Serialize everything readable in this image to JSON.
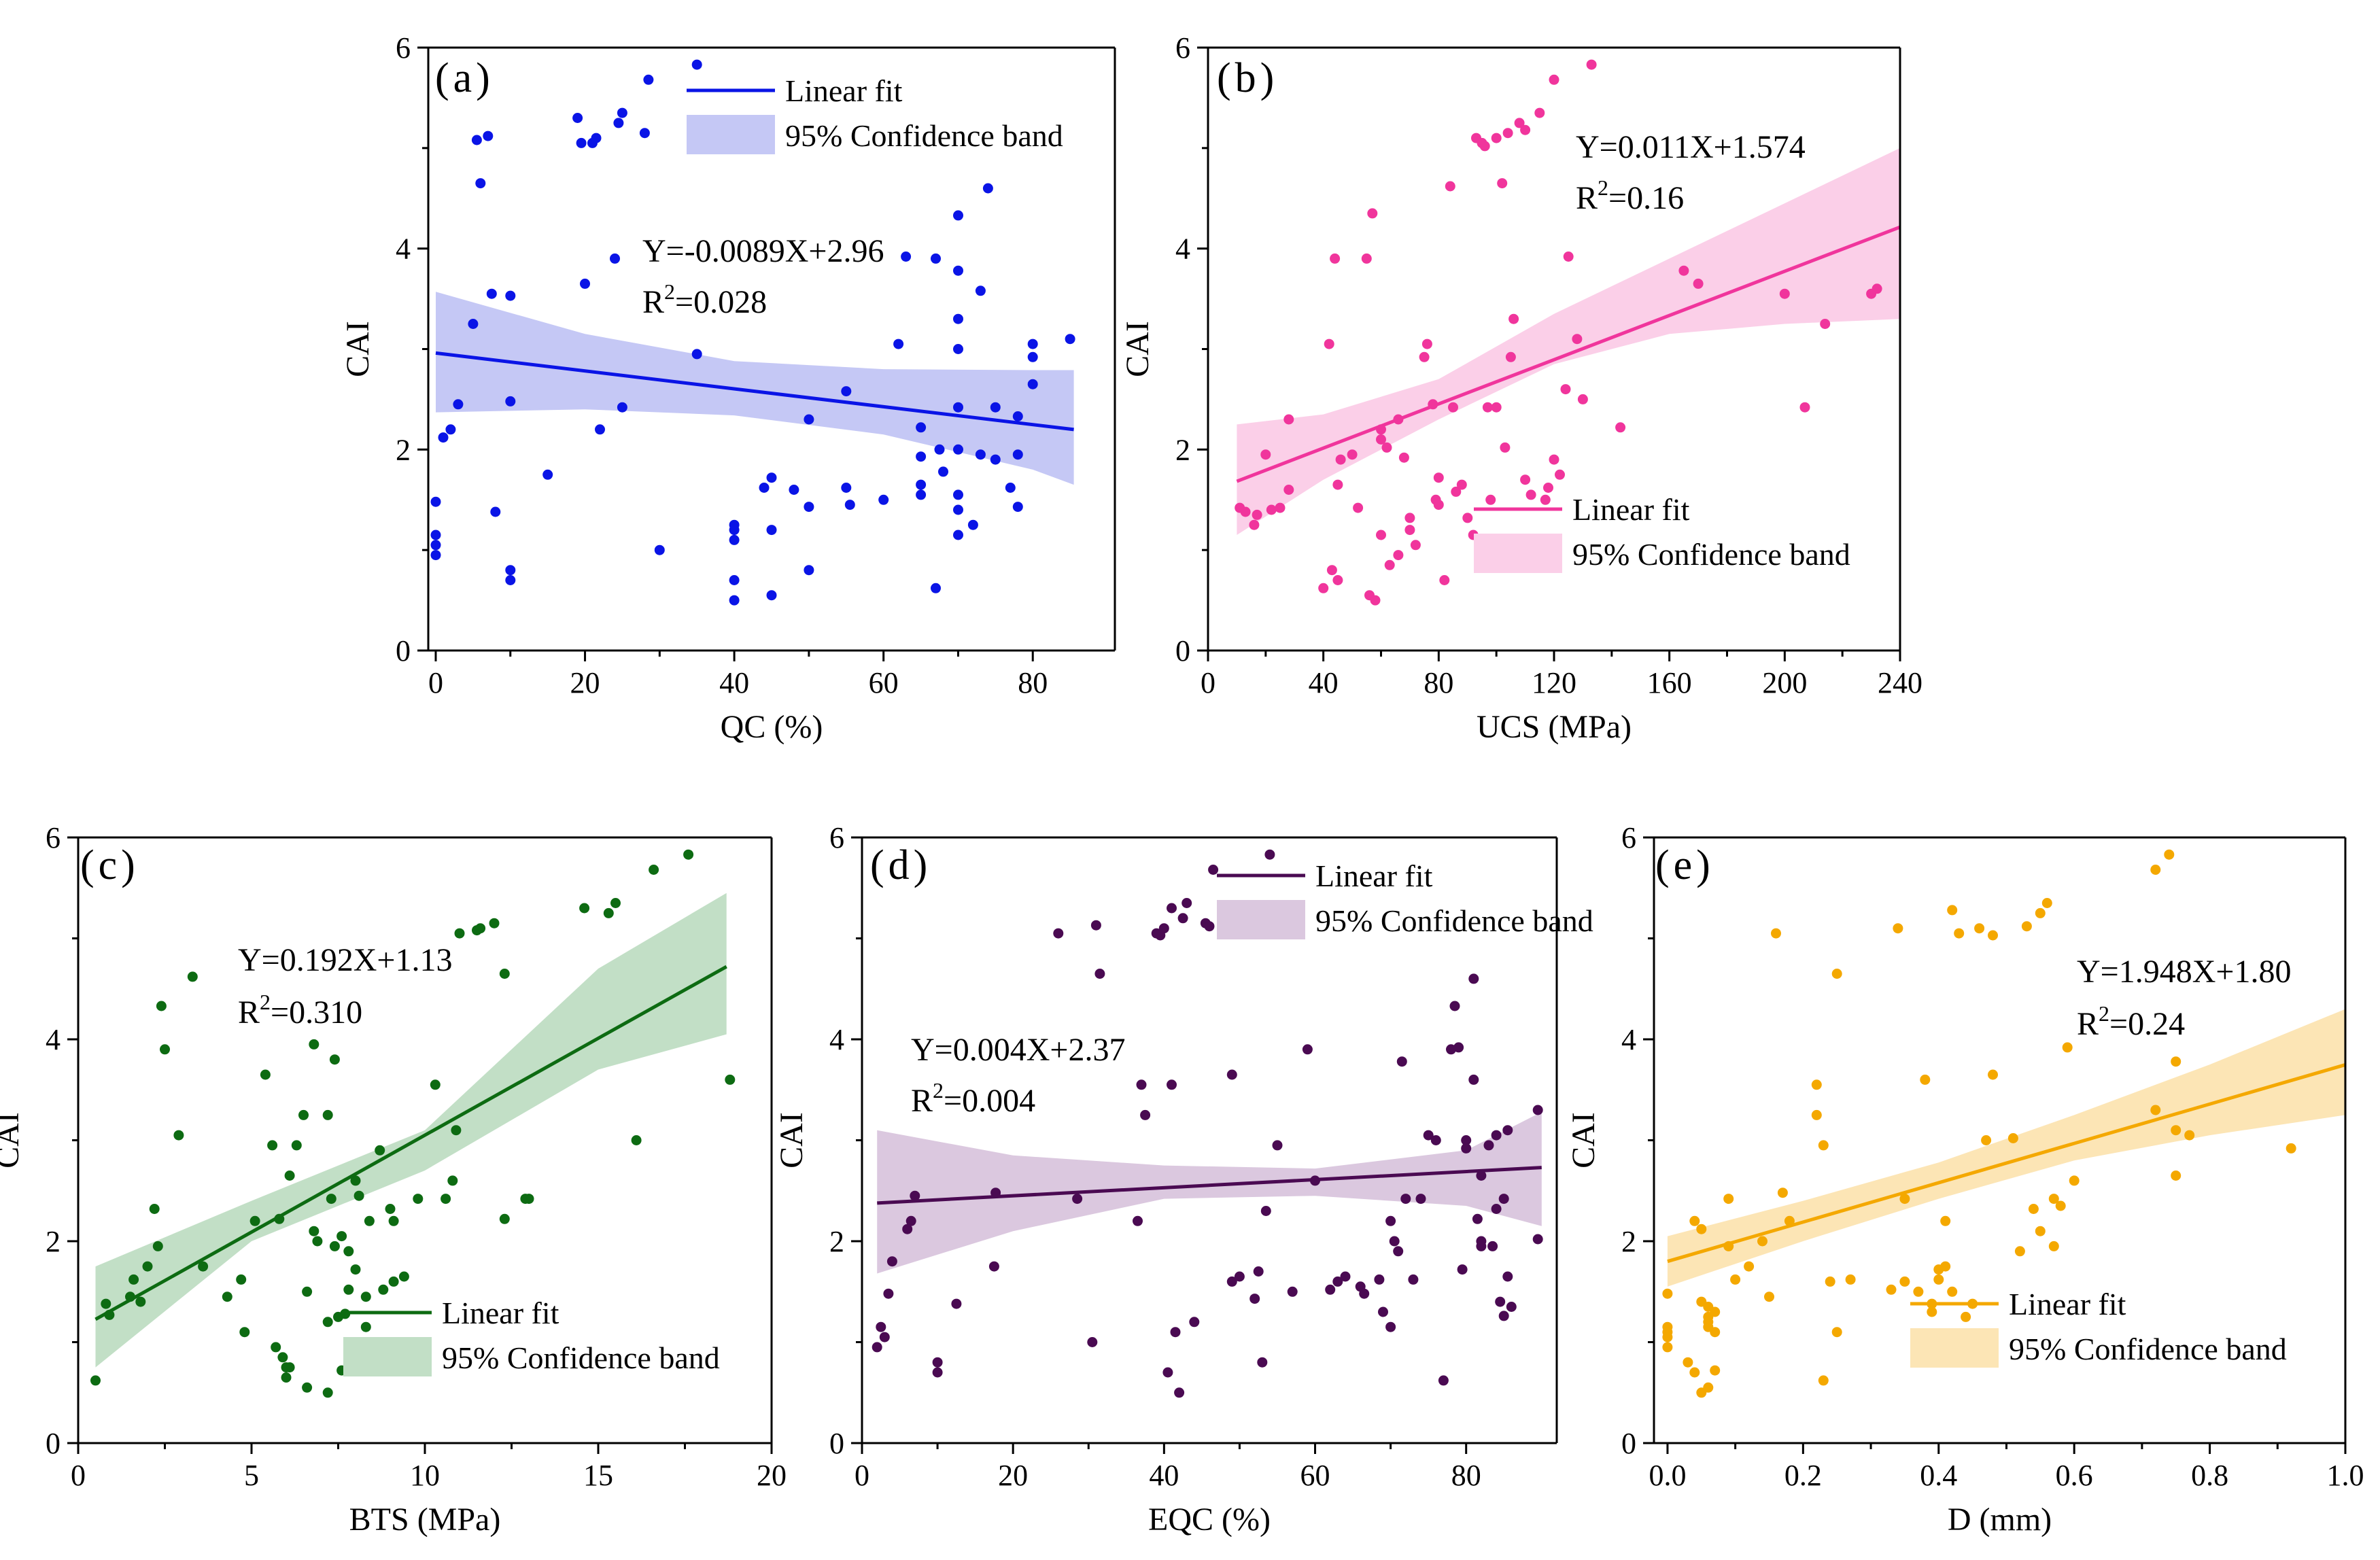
{
  "chart_data": [
    {
      "type": "scatter",
      "panel_label": "(a)",
      "xlabel": "QC (%)",
      "ylabel": "CAI",
      "xlim": [
        -1,
        91
      ],
      "ylim": [
        0,
        6
      ],
      "xticks": [
        0,
        20,
        40,
        60,
        80
      ],
      "xtick_labels": [
        "0",
        "20",
        "40",
        "60",
        "80"
      ],
      "yticks": [
        0,
        2,
        4,
        6
      ],
      "ytick_labels": [
        "0",
        "2",
        "4",
        "6"
      ],
      "color": "#0a14e6",
      "band_color": "#c5c8f5",
      "fit": {
        "slope": -0.0089,
        "intercept": 2.96,
        "x_range": [
          0,
          85.5
        ]
      },
      "band": {
        "x": [
          0,
          20,
          40,
          60,
          80,
          85.5
        ],
        "lower": [
          2.37,
          2.4,
          2.34,
          2.15,
          1.8,
          1.65
        ],
        "upper": [
          3.57,
          3.15,
          2.88,
          2.8,
          2.79,
          2.79
        ]
      },
      "equation": "Y=-0.0089X+2.96",
      "r2_prefix": "R",
      "r2_sup": "2",
      "r2_value": "=0.028",
      "legend": {
        "line_label": "Linear fit",
        "band_label": "95% Confidence band",
        "position": "top-right"
      },
      "x": [
        0,
        0,
        0,
        0,
        1,
        2,
        3,
        5,
        5.5,
        6,
        7,
        7.5,
        8,
        10,
        10,
        10,
        10,
        15,
        19,
        19.5,
        20,
        21,
        21.5,
        22,
        24,
        24.5,
        25,
        25,
        28,
        28.5,
        30,
        35,
        35,
        40,
        40,
        40,
        40,
        40,
        44,
        45,
        45,
        45,
        48,
        50,
        50,
        50,
        55,
        55,
        55.5,
        60,
        62,
        63,
        65,
        65,
        65,
        65,
        67,
        67,
        67.5,
        68,
        70,
        70,
        70,
        70,
        70,
        70,
        70,
        70,
        70,
        72,
        73,
        73,
        74,
        75,
        75,
        77,
        78,
        78,
        78,
        80,
        80,
        80,
        85
      ],
      "y": [
        0.95,
        1.05,
        1.15,
        1.48,
        2.12,
        2.2,
        2.45,
        3.25,
        5.08,
        4.65,
        5.12,
        3.55,
        1.38,
        3.53,
        2.48,
        0.8,
        0.7,
        1.75,
        5.3,
        5.05,
        3.65,
        5.05,
        5.1,
        2.2,
        3.9,
        5.25,
        5.35,
        2.42,
        5.15,
        5.68,
        1.0,
        5.83,
        2.95,
        1.25,
        1.1,
        0.7,
        0.5,
        1.2,
        1.62,
        1.72,
        1.2,
        0.55,
        1.6,
        2.3,
        1.43,
        0.8,
        1.62,
        2.58,
        1.45,
        1.5,
        3.05,
        3.92,
        1.55,
        1.65,
        2.22,
        1.93,
        3.9,
        0.62,
        2.0,
        1.78,
        4.33,
        3.78,
        3.3,
        3.0,
        2.42,
        2.0,
        1.55,
        1.4,
        1.15,
        1.25,
        1.95,
        3.58,
        4.6,
        2.42,
        1.9,
        1.62,
        2.33,
        1.95,
        1.43,
        3.05,
        2.92,
        2.65,
        3.1
      ]
    },
    {
      "type": "scatter",
      "panel_label": "(b)",
      "xlabel": "UCS (MPa)",
      "ylabel": "CAI",
      "xlim": [
        0,
        240
      ],
      "ylim": [
        0,
        6
      ],
      "xticks": [
        0,
        40,
        80,
        120,
        160,
        200,
        240
      ],
      "xtick_labels": [
        "0",
        "40",
        "80",
        "120",
        "160",
        "200",
        "240"
      ],
      "yticks": [
        0,
        2,
        4,
        6
      ],
      "ytick_labels": [
        "0",
        "2",
        "4",
        "6"
      ],
      "color": "#f0359c",
      "band_color": "#fbcfe8",
      "fit": {
        "slope": 0.011,
        "intercept": 1.574,
        "x_range": [
          10,
          240
        ]
      },
      "band": {
        "x": [
          10,
          40,
          80,
          120,
          160,
          200,
          240
        ],
        "lower": [
          1.15,
          1.7,
          2.3,
          2.85,
          3.15,
          3.25,
          3.3
        ],
        "upper": [
          2.25,
          2.35,
          2.7,
          3.35,
          3.9,
          4.45,
          5.0
        ]
      },
      "equation": "Y=0.011X+1.574",
      "r2_prefix": "R",
      "r2_sup": "2",
      "r2_value": "=0.16",
      "legend": {
        "line_label": "Linear fit",
        "band_label": "95% Confidence band",
        "position": "bottom-right"
      },
      "x": [
        11,
        13,
        16,
        17,
        20,
        22,
        25,
        28,
        28,
        40,
        42,
        43,
        44,
        45,
        45,
        46,
        50,
        52,
        55,
        56,
        57,
        58,
        60,
        60,
        60,
        62,
        63,
        66,
        66,
        68,
        70,
        70,
        72,
        75,
        76,
        78,
        79,
        80,
        80,
        82,
        84,
        85,
        86,
        88,
        90,
        92,
        93,
        94,
        95,
        96,
        97,
        98,
        100,
        100,
        102,
        103,
        104,
        105,
        106,
        108,
        110,
        110,
        112,
        115,
        117,
        118,
        120,
        120,
        122,
        124,
        125,
        128,
        130,
        133,
        143,
        165,
        170,
        200,
        207,
        214,
        230,
        232
      ],
      "y": [
        1.42,
        1.38,
        1.25,
        1.35,
        1.95,
        1.4,
        1.42,
        1.6,
        2.3,
        0.62,
        3.05,
        0.8,
        3.9,
        0.7,
        1.65,
        1.9,
        1.95,
        1.42,
        3.9,
        0.55,
        4.35,
        0.5,
        2.2,
        2.1,
        1.15,
        2.02,
        0.85,
        2.3,
        0.95,
        1.92,
        1.2,
        1.32,
        1.05,
        2.92,
        3.05,
        2.45,
        1.5,
        1.45,
        1.72,
        0.7,
        4.62,
        2.42,
        1.58,
        1.65,
        1.32,
        1.15,
        5.1,
        1.05,
        5.05,
        5.02,
        2.42,
        1.5,
        2.42,
        5.1,
        4.65,
        2.02,
        5.15,
        2.92,
        3.3,
        5.25,
        5.18,
        1.7,
        1.55,
        5.35,
        1.5,
        1.62,
        1.9,
        5.68,
        1.75,
        2.6,
        3.92,
        3.1,
        2.5,
        5.83,
        2.22,
        3.78,
        3.65,
        3.55,
        2.42,
        3.25,
        3.55,
        3.6
      ]
    },
    {
      "type": "scatter",
      "panel_label": "(c)",
      "xlabel": "BTS (MPa)",
      "ylabel": "CAI",
      "xlim": [
        0,
        20
      ],
      "ylim": [
        0,
        6
      ],
      "xticks": [
        0,
        5,
        10,
        15,
        20
      ],
      "xtick_labels": [
        "0",
        "5",
        "10",
        "15",
        "20"
      ],
      "yticks": [
        0,
        2,
        4,
        6
      ],
      "ytick_labels": [
        "0",
        "2",
        "4",
        "6"
      ],
      "color": "#0d6b12",
      "band_color": "#c2dfc6",
      "fit": {
        "slope": 0.192,
        "intercept": 1.13,
        "x_range": [
          0.5,
          18.7
        ]
      },
      "band": {
        "x": [
          0.5,
          5,
          10,
          15,
          18.7
        ],
        "lower": [
          0.75,
          2.0,
          2.7,
          3.7,
          4.05
        ],
        "upper": [
          1.75,
          2.4,
          3.1,
          4.7,
          5.45
        ]
      },
      "equation": "Y=0.192X+1.13",
      "r2_prefix": "R",
      "r2_sup": "2",
      "r2_value": "=0.310",
      "legend": {
        "line_label": "Linear fit",
        "band_label": "95% Confidence band",
        "position": "bottom-right"
      },
      "x": [
        0.5,
        0.8,
        0.9,
        1.5,
        1.6,
        1.8,
        2.0,
        2.2,
        2.3,
        2.4,
        2.5,
        2.9,
        3.3,
        3.6,
        4.3,
        4.7,
        4.8,
        5.1,
        5.4,
        5.7,
        6.1,
        6.5,
        6.6,
        6.8,
        6.9,
        7.2,
        7.4,
        7.5,
        7.6,
        7.8,
        8.0,
        8.3,
        8.4,
        8.5,
        8.8,
        9.0,
        9.1,
        9.4,
        10.3,
        10.6,
        10.9,
        11.0,
        11.5,
        11.6,
        12.0,
        12.3,
        13.0,
        14.6,
        15.3,
        15.5,
        16.1,
        16.6,
        17.6,
        18.8,
        5.6,
        5.8,
        5.9,
        6.0,
        6.0,
        6.1,
        6.3,
        6.6,
        6.8,
        7.2,
        7.2,
        7.3,
        7.4,
        7.6,
        7.7,
        7.8,
        8.0,
        8.1,
        8.3,
        8.7,
        9.1,
        9.8,
        10.8,
        12.3,
        12.9
      ],
      "y": [
        0.62,
        1.38,
        1.27,
        1.45,
        1.62,
        1.4,
        1.75,
        2.32,
        1.95,
        4.33,
        3.9,
        3.05,
        4.62,
        1.75,
        1.45,
        1.62,
        1.1,
        2.2,
        3.65,
        0.95,
        0.75,
        3.25,
        0.55,
        3.95,
        2.0,
        0.5,
        3.8,
        1.25,
        2.05,
        1.9,
        1.72,
        1.45,
        2.2,
        1.0,
        1.52,
        2.32,
        1.6,
        1.65,
        3.55,
        2.42,
        3.1,
        5.05,
        5.08,
        5.1,
        5.15,
        4.65,
        2.42,
        5.3,
        5.25,
        5.35,
        3.0,
        5.68,
        5.83,
        3.6,
        2.95,
        2.22,
        0.85,
        0.65,
        0.75,
        2.65,
        2.95,
        1.5,
        2.1,
        3.25,
        1.2,
        2.42,
        1.95,
        0.72,
        1.28,
        1.52,
        2.6,
        2.45,
        1.15,
        2.9,
        2.2,
        2.42,
        2.6,
        2.22,
        2.42
      ]
    },
    {
      "type": "scatter",
      "panel_label": "(d)",
      "xlabel": "EQC (%)",
      "ylabel": "CAI",
      "xlim": [
        0,
        92
      ],
      "ylim": [
        0,
        6
      ],
      "xticks": [
        0,
        20,
        40,
        60,
        80
      ],
      "xtick_labels": [
        "0",
        "20",
        "40",
        "60",
        "80"
      ],
      "yticks": [
        0,
        2,
        4,
        6
      ],
      "ytick_labels": [
        "0",
        "2",
        "4",
        "6"
      ],
      "color": "#4a0a52",
      "band_color": "#dbc8df",
      "fit": {
        "slope": 0.004,
        "intercept": 2.37,
        "x_range": [
          2,
          90
        ]
      },
      "band": {
        "x": [
          2,
          20,
          40,
          60,
          80,
          90
        ],
        "lower": [
          1.68,
          2.1,
          2.42,
          2.45,
          2.35,
          2.15
        ],
        "upper": [
          3.1,
          2.85,
          2.75,
          2.72,
          2.9,
          3.28
        ]
      },
      "equation": "Y=0.004X+2.37",
      "r2_prefix": "R",
      "r2_sup": "2",
      "r2_value": "=0.004",
      "legend": {
        "line_label": "Linear fit",
        "band_label": "95% Confidence band",
        "position": "top-right"
      },
      "x": [
        2,
        2.5,
        3,
        3.5,
        4,
        6,
        6.5,
        7,
        10,
        10,
        12.5,
        17.5,
        17.7,
        26,
        28.5,
        30.5,
        31,
        31.5,
        36.5,
        37,
        37.5,
        39,
        39.5,
        40,
        40.5,
        41,
        41,
        41.5,
        42,
        42.5,
        43,
        44,
        45.5,
        46,
        46.5,
        49,
        49,
        50,
        52,
        52.5,
        53,
        53.5,
        54,
        55,
        57,
        59,
        60,
        62,
        63,
        64,
        66,
        66.5,
        68.5,
        69,
        70,
        70,
        70.5,
        71,
        71.5,
        72,
        73,
        74,
        75,
        76,
        77,
        78,
        78.5,
        79,
        79.5,
        80,
        80,
        81,
        81,
        81.5,
        82,
        82,
        82,
        83,
        83.5,
        84,
        84,
        84.5,
        85,
        85,
        85.5,
        85.5,
        86,
        89.5,
        89.5
      ],
      "y": [
        0.95,
        1.15,
        1.05,
        1.48,
        1.8,
        2.12,
        2.2,
        2.45,
        0.8,
        0.7,
        1.38,
        1.75,
        2.48,
        5.05,
        2.42,
        1.0,
        5.13,
        4.65,
        2.2,
        3.55,
        3.25,
        5.05,
        5.03,
        5.1,
        0.7,
        3.55,
        5.3,
        1.1,
        0.5,
        5.2,
        5.35,
        1.2,
        5.15,
        5.12,
        5.68,
        1.6,
        3.65,
        1.65,
        1.43,
        1.7,
        0.8,
        2.3,
        5.83,
        2.95,
        1.5,
        3.9,
        2.6,
        1.52,
        1.6,
        1.65,
        1.55,
        1.48,
        1.62,
        1.3,
        1.15,
        2.2,
        2.0,
        1.9,
        3.78,
        2.42,
        1.62,
        2.42,
        3.05,
        3.0,
        0.62,
        3.9,
        4.33,
        3.92,
        1.72,
        3.0,
        2.92,
        4.6,
        3.6,
        2.22,
        2.65,
        1.95,
        2.0,
        2.95,
        1.95,
        2.32,
        3.05,
        1.4,
        1.26,
        2.42,
        3.1,
        1.65,
        1.35,
        2.02,
        3.3
      ]
    },
    {
      "type": "scatter",
      "panel_label": "(e)",
      "xlabel": "D (mm)",
      "ylabel": "CAI",
      "xlim": [
        -0.02,
        1.0
      ],
      "ylim": [
        0,
        6
      ],
      "xticks": [
        0.0,
        0.2,
        0.4,
        0.6,
        0.8,
        1.0
      ],
      "xtick_labels": [
        "0.0",
        "0.2",
        "0.4",
        "0.6",
        "0.8",
        "1.0"
      ],
      "yticks": [
        0,
        2,
        4,
        6
      ],
      "ytick_labels": [
        "0",
        "2",
        "4",
        "6"
      ],
      "color": "#f4a800",
      "band_color": "#fce5b5",
      "fit": {
        "slope": 1.948,
        "intercept": 1.8,
        "x_range": [
          0,
          1.0
        ]
      },
      "band": {
        "x": [
          0,
          0.2,
          0.4,
          0.6,
          0.8,
          1.0
        ],
        "lower": [
          1.55,
          2.0,
          2.42,
          2.8,
          3.05,
          3.25
        ],
        "upper": [
          2.05,
          2.4,
          2.78,
          3.25,
          3.75,
          4.3
        ]
      },
      "equation": "Y=1.948X+1.80",
      "r2_prefix": "R",
      "r2_sup": "2",
      "r2_value": "=0.24",
      "legend": {
        "line_label": "Linear fit",
        "band_label": "95% Confidence band",
        "position": "bottom-right"
      },
      "x": [
        0,
        0,
        0,
        0,
        0,
        0.03,
        0.04,
        0.04,
        0.05,
        0.05,
        0.05,
        0.06,
        0.06,
        0.06,
        0.06,
        0.06,
        0.07,
        0.07,
        0.07,
        0.09,
        0.09,
        0.1,
        0.12,
        0.14,
        0.15,
        0.16,
        0.17,
        0.18,
        0.22,
        0.22,
        0.23,
        0.23,
        0.24,
        0.25,
        0.25,
        0.27,
        0.33,
        0.34,
        0.35,
        0.35,
        0.37,
        0.38,
        0.39,
        0.39,
        0.4,
        0.4,
        0.41,
        0.41,
        0.42,
        0.42,
        0.43,
        0.44,
        0.45,
        0.46,
        0.47,
        0.48,
        0.48,
        0.51,
        0.52,
        0.53,
        0.54,
        0.55,
        0.55,
        0.56,
        0.57,
        0.57,
        0.58,
        0.59,
        0.6,
        0.72,
        0.72,
        0.74,
        0.75,
        0.75,
        0.75,
        0.77,
        0.92
      ],
      "y": [
        1.05,
        1.15,
        0.95,
        1.48,
        1.1,
        0.8,
        2.2,
        0.7,
        0.5,
        1.4,
        2.12,
        1.25,
        1.2,
        1.15,
        0.55,
        1.35,
        1.1,
        0.72,
        1.3,
        1.95,
        2.42,
        1.62,
        1.75,
        2.0,
        1.45,
        5.05,
        2.48,
        2.2,
        3.55,
        3.25,
        2.95,
        0.62,
        1.6,
        4.65,
        1.1,
        1.62,
        1.52,
        5.1,
        2.42,
        1.6,
        1.5,
        3.6,
        1.38,
        1.3,
        1.72,
        1.62,
        1.75,
        2.2,
        1.5,
        5.28,
        5.05,
        1.25,
        1.38,
        5.1,
        3.0,
        3.65,
        5.03,
        3.02,
        1.9,
        5.12,
        2.32,
        2.1,
        5.25,
        5.35,
        1.95,
        2.42,
        2.35,
        3.92,
        2.6,
        5.68,
        3.3,
        5.83,
        3.78,
        3.1,
        2.65,
        3.05,
        2.92
      ]
    }
  ]
}
